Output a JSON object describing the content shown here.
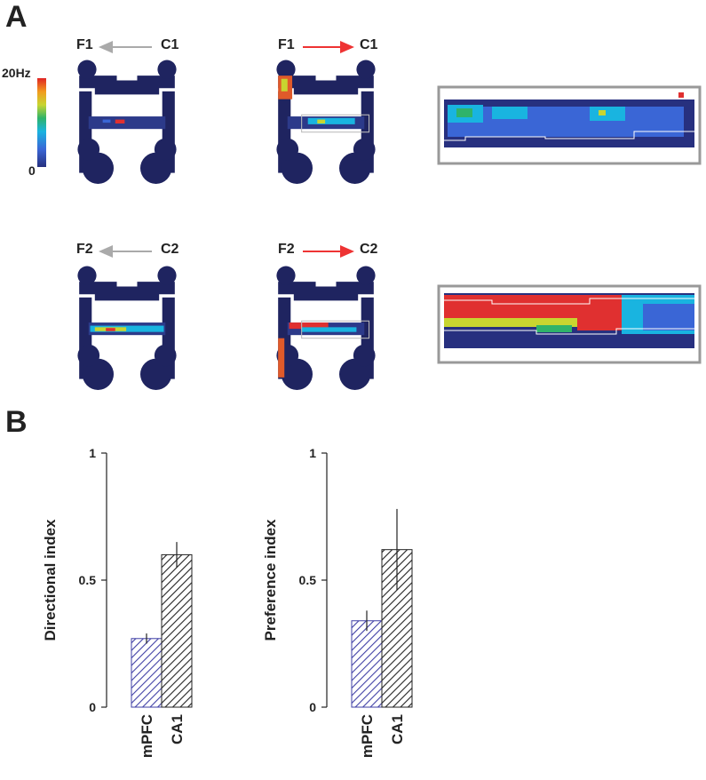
{
  "panels": {
    "a_letter": "A",
    "b_letter": "B"
  },
  "heatmaps": {
    "row1": {
      "left_arrow": {
        "from": "C1",
        "to": "F1",
        "color": "#aaaaaa"
      },
      "right_arrow": {
        "from": "F1",
        "to": "C1",
        "color": "#ee3333"
      }
    },
    "row2": {
      "left_arrow": {
        "from": "C2",
        "to": "F2",
        "color": "#aaaaaa"
      },
      "right_arrow": {
        "from": "F2",
        "to": "C2",
        "color": "#ee3333"
      }
    },
    "colorbar": {
      "max_label": "20Hz",
      "min_label": "0",
      "colors": [
        "#27307f",
        "#3a66d6",
        "#19b4e0",
        "#2fb36a",
        "#c8d530",
        "#f29a1e",
        "#e02424"
      ]
    }
  },
  "chart_data": [
    {
      "type": "bar",
      "categories": [
        "mPFC",
        "CA1"
      ],
      "values": [
        0.27,
        0.6
      ],
      "errors": [
        0.02,
        0.05
      ],
      "ylabel": "Directional index",
      "ylim": [
        0,
        1
      ],
      "yticks": [
        "0",
        "0.5",
        "1"
      ],
      "bar_colors": [
        "#3f3fa5",
        "#222222"
      ],
      "hatch": "diagonal"
    },
    {
      "type": "bar",
      "categories": [
        "mPFC",
        "CA1"
      ],
      "values": [
        0.34,
        0.62
      ],
      "errors": [
        0.04,
        0.16
      ],
      "ylabel": "Preference index",
      "ylim": [
        0,
        1
      ],
      "yticks": [
        "0",
        "0.5",
        "1"
      ],
      "bar_colors": [
        "#3f3fa5",
        "#222222"
      ],
      "hatch": "diagonal"
    }
  ]
}
